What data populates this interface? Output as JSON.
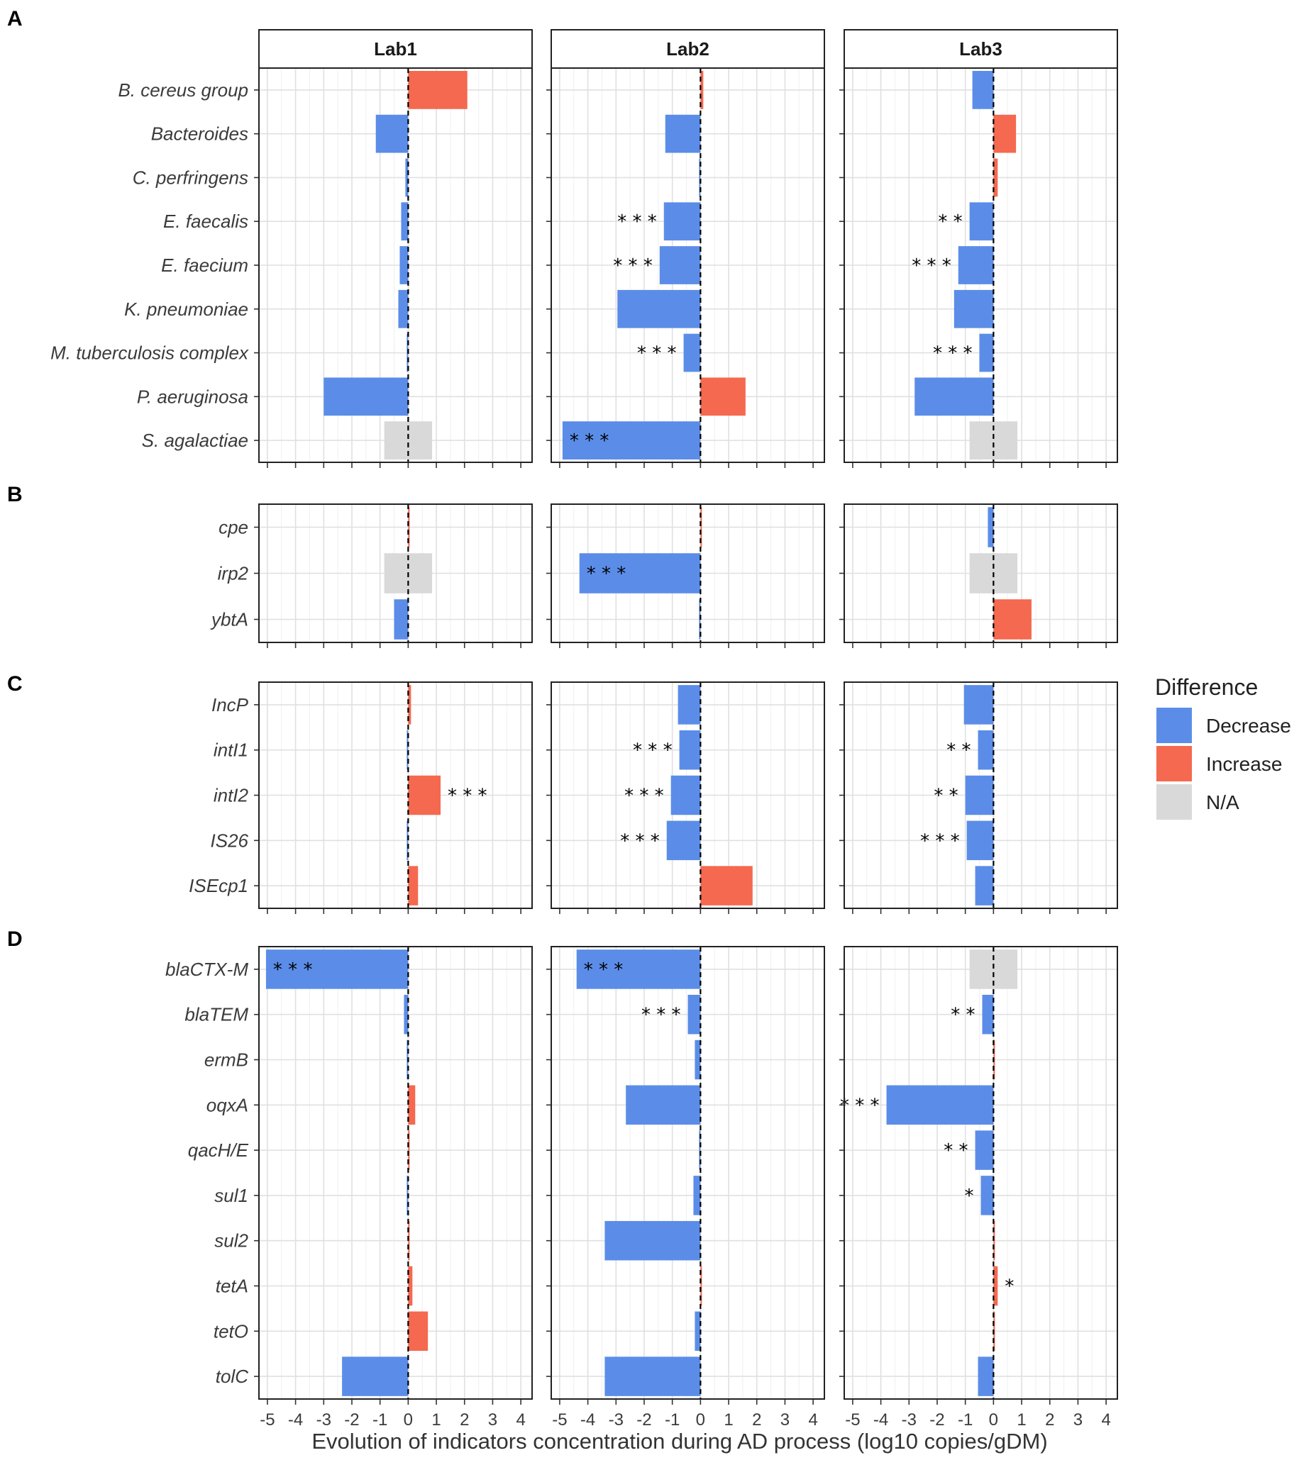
{
  "chart_data": {
    "type": "bar",
    "orientation": "horizontal",
    "xlabel": "Evolution of indicators concentration during AD process (log10 copies/gDM)",
    "xlim": [
      -5.3,
      4.4
    ],
    "xticks": [
      -5,
      -4,
      -3,
      -2,
      -1,
      0,
      1,
      2,
      3,
      4
    ],
    "facets": [
      "Lab1",
      "Lab2",
      "Lab3"
    ],
    "colors": {
      "Decrease": "#5b8de8",
      "Increase": "#f4694f",
      "N/A": "#d9d9d9"
    },
    "legend": {
      "title": "Difference",
      "position": "right",
      "entries": [
        "Decrease",
        "Increase",
        "N/A"
      ]
    },
    "panels": [
      {
        "label": "A",
        "categories": [
          "B. cereus group",
          "Bacteroides",
          "C. perfringens",
          "E. faecalis",
          "E. faecium",
          "K. pneumoniae",
          "M. tuberculosis complex",
          "P. aeruginosa",
          "S. agalactiae"
        ],
        "series": [
          {
            "name": "Lab1",
            "values": [
              2.1,
              -1.15,
              -0.1,
              -0.25,
              -0.3,
              -0.35,
              -0.05,
              -3.0,
              null
            ],
            "signif": [
              "",
              "",
              "",
              "",
              "",
              "",
              "",
              "",
              ""
            ]
          },
          {
            "name": "Lab2",
            "values": [
              0.1,
              -1.25,
              -0.05,
              -1.3,
              -1.45,
              -2.95,
              -0.6,
              1.6,
              -4.9
            ],
            "signif": [
              "",
              "",
              "",
              "***",
              "***",
              "",
              "***",
              "",
              "***"
            ]
          },
          {
            "name": "Lab3",
            "values": [
              -0.75,
              0.8,
              0.15,
              -0.85,
              -1.25,
              -1.4,
              -0.5,
              -2.8,
              null
            ],
            "signif": [
              "",
              "",
              "",
              "**",
              "***",
              "",
              "***",
              "",
              ""
            ]
          }
        ]
      },
      {
        "label": "B",
        "categories": [
          "cpe",
          "irp2",
          "ybtA"
        ],
        "series": [
          {
            "name": "Lab1",
            "values": [
              0.05,
              null,
              -0.5
            ],
            "signif": [
              "",
              "",
              ""
            ]
          },
          {
            "name": "Lab2",
            "values": [
              0.05,
              -4.3,
              -0.05
            ],
            "signif": [
              "",
              "***",
              ""
            ]
          },
          {
            "name": "Lab3",
            "values": [
              -0.2,
              null,
              1.35
            ],
            "signif": [
              "",
              "",
              ""
            ]
          }
        ]
      },
      {
        "label": "C",
        "categories": [
          "IncP",
          "intI1",
          "intI2",
          "IS26",
          "ISEcp1"
        ],
        "series": [
          {
            "name": "Lab1",
            "values": [
              0.1,
              -0.05,
              1.15,
              -0.05,
              0.35
            ],
            "signif": [
              "",
              "",
              "***",
              "",
              ""
            ]
          },
          {
            "name": "Lab2",
            "values": [
              -0.8,
              -0.75,
              -1.05,
              -1.2,
              1.85
            ],
            "signif": [
              "",
              "***",
              "***",
              "***",
              ""
            ]
          },
          {
            "name": "Lab3",
            "values": [
              -1.05,
              -0.55,
              -1.0,
              -0.95,
              -0.65
            ],
            "signif": [
              "",
              "**",
              "**",
              "***",
              ""
            ]
          }
        ]
      },
      {
        "label": "D",
        "categories": [
          "blaCTX-M",
          "blaTEM",
          "ermB",
          "oqxA",
          "qacH/E",
          "sul1",
          "sul2",
          "tetA",
          "tetO",
          "tolC"
        ],
        "series": [
          {
            "name": "Lab1",
            "values": [
              -5.05,
              -0.15,
              -0.05,
              0.25,
              0.0,
              -0.05,
              0.0,
              0.15,
              0.7,
              -2.35
            ],
            "signif": [
              "***",
              "",
              "",
              "",
              "",
              "",
              "",
              "",
              "",
              ""
            ]
          },
          {
            "name": "Lab2",
            "values": [
              -4.4,
              -0.45,
              -0.2,
              -2.65,
              -0.05,
              -0.25,
              -3.4,
              0.05,
              -0.2,
              -3.4
            ],
            "signif": [
              "***",
              "***",
              "",
              "",
              "",
              "",
              "",
              "",
              "",
              ""
            ]
          },
          {
            "name": "Lab3",
            "values": [
              null,
              -0.4,
              0.05,
              -3.8,
              -0.65,
              -0.45,
              0.0,
              0.15,
              0.05,
              -0.55
            ],
            "signif": [
              "",
              "**",
              "",
              "***",
              "**",
              "*",
              "",
              "*",
              "",
              ""
            ]
          }
        ]
      }
    ]
  }
}
